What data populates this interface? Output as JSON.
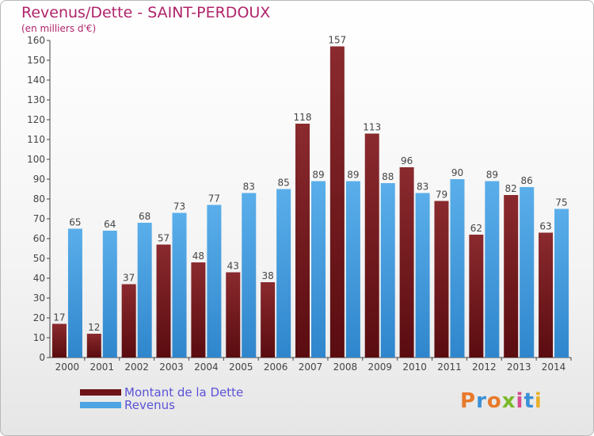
{
  "title": "Revenus/Dette - SAINT-PERDOUX",
  "subtitle": "(en milliers d'€)",
  "legend": {
    "debt_label": "Montant de la Dette",
    "revenue_label": "Revenus"
  },
  "logo": "Proxiti",
  "colors": {
    "debt": "#7a1a1e",
    "revenue": "#4ea3e3",
    "title": "#b0246a",
    "legend_text": "#5b52d6"
  },
  "chart_data": {
    "type": "bar",
    "title": "Revenus/Dette - SAINT-PERDOUX",
    "subtitle": "(en milliers d'€)",
    "xlabel": "",
    "ylabel": "",
    "ylim": [
      0,
      160
    ],
    "yticks": [
      0,
      10,
      20,
      30,
      40,
      50,
      60,
      70,
      80,
      90,
      100,
      110,
      120,
      130,
      140,
      150,
      160
    ],
    "grid": false,
    "legend_position": "bottom-left",
    "categories": [
      "2000",
      "2001",
      "2002",
      "2003",
      "2004",
      "2005",
      "2006",
      "2007",
      "2008",
      "2009",
      "2010",
      "2011",
      "2012",
      "2013",
      "2014"
    ],
    "series": [
      {
        "name": "Montant de la Dette",
        "values": [
          17,
          12,
          37,
          57,
          48,
          43,
          38,
          118,
          157,
          113,
          96,
          79,
          62,
          82,
          63
        ]
      },
      {
        "name": "Revenus",
        "values": [
          65,
          64,
          68,
          73,
          77,
          83,
          85,
          89,
          89,
          88,
          83,
          90,
          89,
          86,
          75
        ]
      }
    ]
  }
}
